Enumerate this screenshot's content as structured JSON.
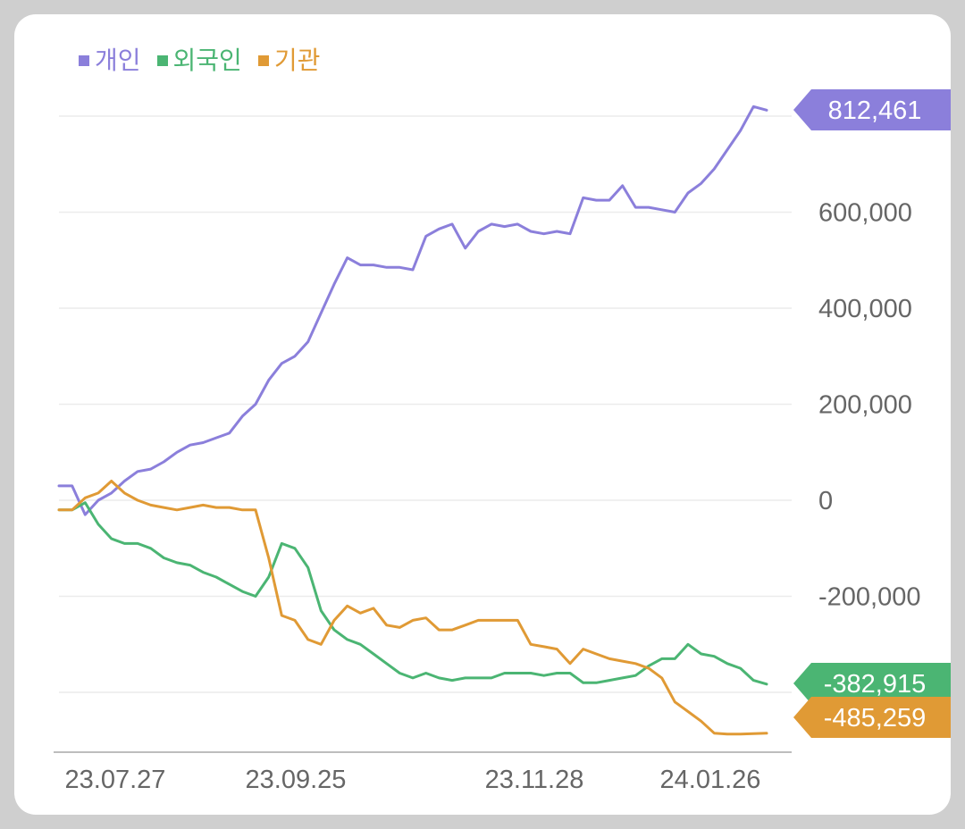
{
  "chart_data": {
    "type": "line",
    "legend_placement": "top-left",
    "grid": true,
    "ylim": [
      -490000,
      830000
    ],
    "y_ticks": [
      {
        "value": 600000,
        "label": "600,000"
      },
      {
        "value": 400000,
        "label": "400,000"
      },
      {
        "value": 200000,
        "label": "200,000"
      },
      {
        "value": 0,
        "label": "0"
      },
      {
        "value": -200000,
        "label": "-200,000"
      }
    ],
    "x_ticks": [
      "23.07.27",
      "23.09.25",
      "23.11.28",
      "24.01.26"
    ],
    "series": [
      {
        "name": "개인",
        "color": "#8b7fdb",
        "end_label": "812,461",
        "values": [
          30000,
          30000,
          -30000,
          0,
          15000,
          40000,
          60000,
          65000,
          80000,
          100000,
          115000,
          120000,
          130000,
          140000,
          175000,
          200000,
          250000,
          285000,
          300000,
          330000,
          390000,
          450000,
          505000,
          490000,
          490000,
          485000,
          485000,
          480000,
          550000,
          565000,
          575000,
          525000,
          560000,
          575000,
          570000,
          575000,
          560000,
          555000,
          560000,
          555000,
          630000,
          625000,
          625000,
          655000,
          610000,
          610000,
          605000,
          600000,
          640000,
          660000,
          690000,
          730000,
          770000,
          820000,
          812461
        ]
      },
      {
        "name": "외국인",
        "color": "#4bb573",
        "end_label": "-382,915",
        "values": [
          -20000,
          -20000,
          -5000,
          -50000,
          -80000,
          -90000,
          -90000,
          -100000,
          -120000,
          -130000,
          -135000,
          -150000,
          -160000,
          -175000,
          -190000,
          -200000,
          -160000,
          -90000,
          -100000,
          -140000,
          -230000,
          -270000,
          -290000,
          -300000,
          -320000,
          -340000,
          -360000,
          -370000,
          -360000,
          -370000,
          -375000,
          -370000,
          -370000,
          -370000,
          -360000,
          -360000,
          -360000,
          -365000,
          -360000,
          -360000,
          -380000,
          -380000,
          -375000,
          -370000,
          -365000,
          -345000,
          -330000,
          -330000,
          -300000,
          -320000,
          -325000,
          -340000,
          -350000,
          -375000,
          -382915
        ]
      },
      {
        "name": "기관",
        "color": "#e09a35",
        "end_label": "-485,259",
        "values": [
          -20000,
          -20000,
          5000,
          15000,
          40000,
          15000,
          0,
          -10000,
          -15000,
          -20000,
          -15000,
          -10000,
          -15000,
          -15000,
          -20000,
          -20000,
          -120000,
          -240000,
          -250000,
          -290000,
          -300000,
          -250000,
          -220000,
          -235000,
          -225000,
          -260000,
          -265000,
          -250000,
          -245000,
          -270000,
          -270000,
          -260000,
          -250000,
          -250000,
          -250000,
          -250000,
          -300000,
          -305000,
          -310000,
          -340000,
          -310000,
          -320000,
          -330000,
          -335000,
          -340000,
          -350000,
          -370000,
          -420000,
          -440000,
          -460000,
          -485000,
          -487000,
          -487000,
          -486000,
          -485259
        ]
      }
    ]
  }
}
